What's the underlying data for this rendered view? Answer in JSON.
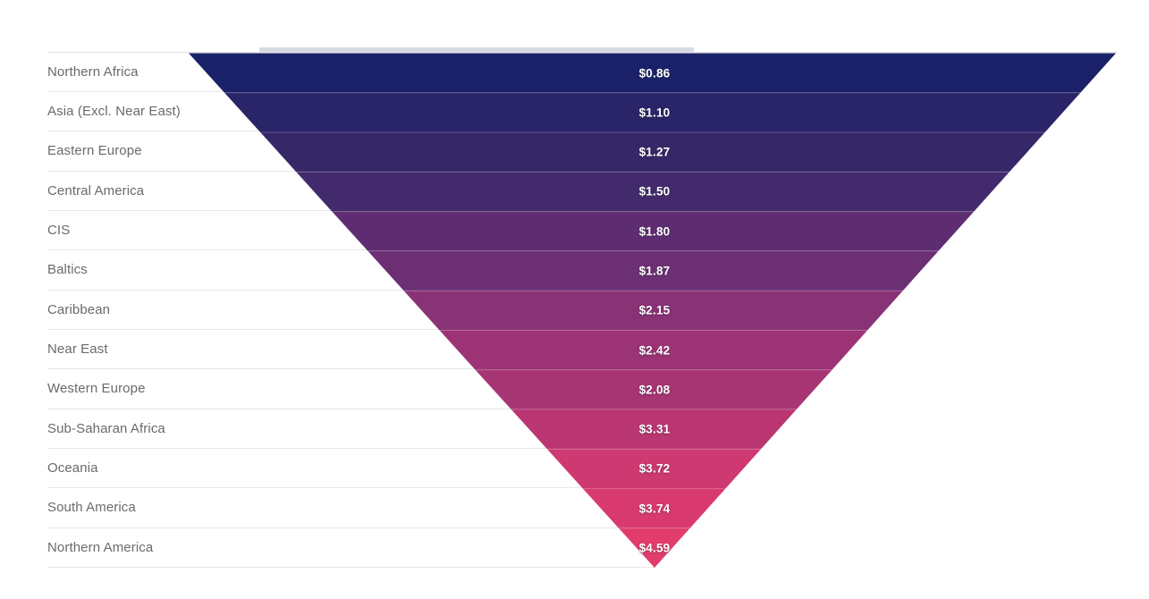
{
  "chart_data": {
    "type": "funnel",
    "shape": "inverted-pyramid",
    "title": "",
    "labels_position": "left",
    "grid": "row-dividers",
    "background": "#ffffff",
    "divider_color": "#e7e7e7",
    "label_text_color": "#6a6a6a",
    "value_text_color": "#ffffff",
    "top_strip_color": "#d7dbe4",
    "categories": [
      "Northern Africa",
      "Asia (Excl. Near East)",
      "Eastern Europe",
      "Central America",
      "CIS",
      "Baltics",
      "Caribbean",
      "Near East",
      "Western Europe",
      "Sub-Saharan Africa",
      "Oceania",
      "South America",
      "Northern America"
    ],
    "values": [
      0.86,
      1.1,
      1.27,
      1.5,
      1.8,
      1.87,
      2.15,
      2.42,
      2.08,
      3.31,
      3.72,
      3.74,
      4.59
    ],
    "value_labels": [
      "$0.86",
      "$1.10",
      "$1.27",
      "$1.50",
      "$1.80",
      "$1.87",
      "$2.15",
      "$2.42",
      "$2.08",
      "$3.31",
      "$3.72",
      "$3.74",
      "$4.59"
    ],
    "slice_colors": [
      "#1b2169",
      "#2a2468",
      "#362769",
      "#422a6c",
      "#5e2d71",
      "#6c2f74",
      "#893276",
      "#9b3375",
      "#a73473",
      "#b93672",
      "#cd3970",
      "#d83a6f",
      "#e23c6d"
    ],
    "slice_separator_color": "rgba(255,255,255,0.22)"
  }
}
